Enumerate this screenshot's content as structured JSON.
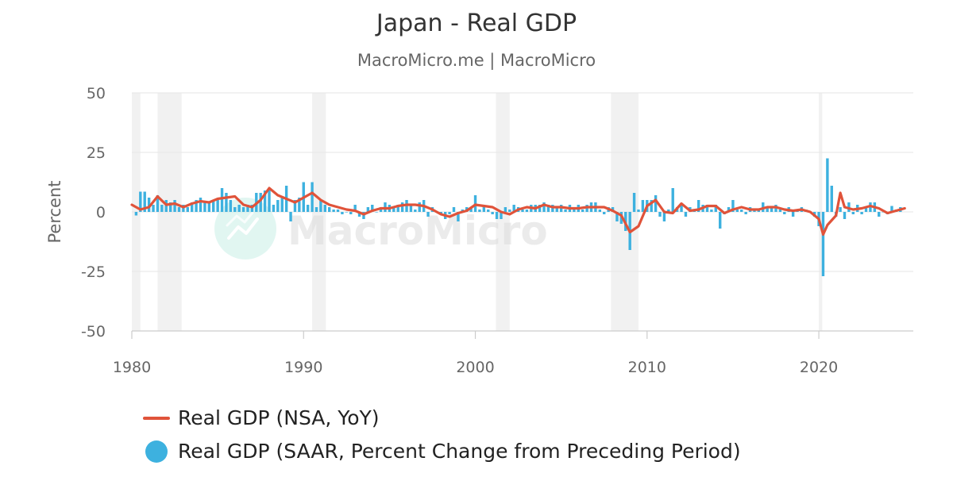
{
  "chart_data": {
    "type": "bar+line",
    "title": "Japan - Real GDP",
    "subtitle": "MacroMicro.me | MacroMicro",
    "watermark": "MacroMicro",
    "ylabel": "Percent",
    "ylim": [
      -50,
      50
    ],
    "yticks": [
      50,
      25,
      0,
      -25,
      -50
    ],
    "xlim": [
      1980,
      2025.5
    ],
    "xticks": [
      1980,
      1990,
      2000,
      2010,
      2020
    ],
    "grid": "horizontal",
    "legend_position": "bottom-left",
    "recession_periods": [
      [
        1980.0,
        1980.5
      ],
      [
        1981.5,
        1982.9
      ],
      [
        1990.5,
        1991.3
      ],
      [
        2001.2,
        2002.0
      ],
      [
        2007.9,
        2009.5
      ],
      [
        2020.0,
        2020.2
      ]
    ],
    "series": [
      {
        "name": "Real GDP (NSA, YoY)",
        "type": "line",
        "color": "#e0533a",
        "points": [
          [
            1980,
            3
          ],
          [
            1980.5,
            1
          ],
          [
            1981,
            2
          ],
          [
            1981.5,
            6.5
          ],
          [
            1982,
            3
          ],
          [
            1982.5,
            3.5
          ],
          [
            1983,
            2
          ],
          [
            1983.5,
            3.5
          ],
          [
            1984,
            4.5
          ],
          [
            1984.5,
            4
          ],
          [
            1985,
            5.5
          ],
          [
            1985.5,
            6
          ],
          [
            1986,
            6.5
          ],
          [
            1986.5,
            3
          ],
          [
            1987,
            2
          ],
          [
            1987.5,
            5
          ],
          [
            1988,
            10
          ],
          [
            1988.5,
            7
          ],
          [
            1989,
            5.5
          ],
          [
            1989.5,
            4
          ],
          [
            1990,
            6
          ],
          [
            1990.5,
            8
          ],
          [
            1991,
            5
          ],
          [
            1991.5,
            3
          ],
          [
            1992,
            2
          ],
          [
            1992.5,
            1
          ],
          [
            1993,
            0.5
          ],
          [
            1993.5,
            -1
          ],
          [
            1994,
            0.5
          ],
          [
            1994.5,
            1.5
          ],
          [
            1995,
            1.5
          ],
          [
            1995.5,
            2.5
          ],
          [
            1996,
            3
          ],
          [
            1996.5,
            3
          ],
          [
            1997,
            2.5
          ],
          [
            1997.5,
            1
          ],
          [
            1998,
            -1
          ],
          [
            1998.5,
            -2
          ],
          [
            1999,
            -0.5
          ],
          [
            1999.5,
            0.5
          ],
          [
            2000,
            3
          ],
          [
            2000.5,
            2.5
          ],
          [
            2001,
            2
          ],
          [
            2001.5,
            0
          ],
          [
            2002,
            -1
          ],
          [
            2002.5,
            1
          ],
          [
            2003,
            2
          ],
          [
            2003.5,
            1.5
          ],
          [
            2004,
            3
          ],
          [
            2004.5,
            2
          ],
          [
            2005,
            2
          ],
          [
            2005.5,
            1.5
          ],
          [
            2006,
            1.5
          ],
          [
            2006.5,
            2
          ],
          [
            2007,
            2
          ],
          [
            2007.5,
            2
          ],
          [
            2008,
            0.5
          ],
          [
            2008.5,
            -1.5
          ],
          [
            2009,
            -8.5
          ],
          [
            2009.5,
            -6
          ],
          [
            2010,
            2.5
          ],
          [
            2010.5,
            5
          ],
          [
            2011,
            0
          ],
          [
            2011.5,
            -0.5
          ],
          [
            2012,
            3.5
          ],
          [
            2012.5,
            0.5
          ],
          [
            2013,
            1
          ],
          [
            2013.5,
            2.5
          ],
          [
            2014,
            2.5
          ],
          [
            2014.5,
            -0.5
          ],
          [
            2015,
            1
          ],
          [
            2015.5,
            2
          ],
          [
            2016,
            1
          ],
          [
            2016.5,
            1
          ],
          [
            2017,
            2
          ],
          [
            2017.5,
            2
          ],
          [
            2018,
            1
          ],
          [
            2018.5,
            0.5
          ],
          [
            2019,
            1
          ],
          [
            2019.5,
            0
          ],
          [
            2020,
            -3
          ],
          [
            2020.25,
            -9.5
          ],
          [
            2020.5,
            -5.5
          ],
          [
            2021,
            -1.5
          ],
          [
            2021.25,
            8
          ],
          [
            2021.5,
            2
          ],
          [
            2022,
            1
          ],
          [
            2022.5,
            1.5
          ],
          [
            2023,
            2.5
          ],
          [
            2023.5,
            1.5
          ],
          [
            2024,
            -0.5
          ],
          [
            2024.5,
            0.5
          ],
          [
            2025,
            1.5
          ]
        ]
      },
      {
        "name": "Real GDP (SAAR, Percent Change from Preceding Period)",
        "type": "bar",
        "color": "#3db1df",
        "points": [
          [
            1980.25,
            -1.5
          ],
          [
            1980.5,
            8.5
          ],
          [
            1980.75,
            8.5
          ],
          [
            1981,
            6
          ],
          [
            1981.25,
            3
          ],
          [
            1981.5,
            7
          ],
          [
            1981.75,
            3
          ],
          [
            1982,
            5
          ],
          [
            1982.25,
            4
          ],
          [
            1982.5,
            5
          ],
          [
            1982.75,
            2
          ],
          [
            1983,
            3
          ],
          [
            1983.25,
            2
          ],
          [
            1983.5,
            4
          ],
          [
            1983.75,
            5
          ],
          [
            1984,
            6
          ],
          [
            1984.25,
            4
          ],
          [
            1984.5,
            4
          ],
          [
            1984.75,
            5
          ],
          [
            1985,
            5
          ],
          [
            1985.25,
            10
          ],
          [
            1985.5,
            8
          ],
          [
            1985.75,
            5
          ],
          [
            1986,
            2
          ],
          [
            1986.25,
            3
          ],
          [
            1986.5,
            2
          ],
          [
            1986.75,
            3
          ],
          [
            1987,
            3
          ],
          [
            1987.25,
            8
          ],
          [
            1987.5,
            8
          ],
          [
            1987.75,
            9
          ],
          [
            1988,
            10
          ],
          [
            1988.25,
            3
          ],
          [
            1988.5,
            5
          ],
          [
            1988.75,
            6
          ],
          [
            1989,
            11
          ],
          [
            1989.25,
            -4
          ],
          [
            1989.5,
            5
          ],
          [
            1989.75,
            6
          ],
          [
            1990,
            12.5
          ],
          [
            1990.25,
            3
          ],
          [
            1990.5,
            12.5
          ],
          [
            1990.75,
            2
          ],
          [
            1991,
            5
          ],
          [
            1991.25,
            3
          ],
          [
            1991.5,
            2
          ],
          [
            1991.75,
            1
          ],
          [
            1992,
            1
          ],
          [
            1992.25,
            -1
          ],
          [
            1992.5,
            0
          ],
          [
            1992.75,
            -1
          ],
          [
            1993,
            3
          ],
          [
            1993.25,
            -2
          ],
          [
            1993.5,
            -3
          ],
          [
            1993.75,
            2
          ],
          [
            1994,
            3
          ],
          [
            1994.25,
            0
          ],
          [
            1994.5,
            2
          ],
          [
            1994.75,
            4
          ],
          [
            1995,
            3
          ],
          [
            1995.25,
            2
          ],
          [
            1995.5,
            3
          ],
          [
            1995.75,
            4
          ],
          [
            1996,
            5
          ],
          [
            1996.25,
            3
          ],
          [
            1996.5,
            1
          ],
          [
            1996.75,
            4
          ],
          [
            1997,
            5
          ],
          [
            1997.25,
            -2
          ],
          [
            1997.5,
            2
          ],
          [
            1997.75,
            0
          ],
          [
            1998,
            -1
          ],
          [
            1998.25,
            -3
          ],
          [
            1998.5,
            -1
          ],
          [
            1998.75,
            2
          ],
          [
            1999,
            -4
          ],
          [
            1999.25,
            1
          ],
          [
            1999.5,
            2
          ],
          [
            1999.75,
            2
          ],
          [
            2000,
            7
          ],
          [
            2000.25,
            1
          ],
          [
            2000.5,
            2
          ],
          [
            2000.75,
            1
          ],
          [
            2001,
            -1
          ],
          [
            2001.25,
            -3
          ],
          [
            2001.5,
            -3
          ],
          [
            2001.75,
            2
          ],
          [
            2002,
            1
          ],
          [
            2002.25,
            3
          ],
          [
            2002.5,
            2
          ],
          [
            2002.75,
            1
          ],
          [
            2003,
            1
          ],
          [
            2003.25,
            3
          ],
          [
            2003.5,
            3
          ],
          [
            2003.75,
            3
          ],
          [
            2004,
            4
          ],
          [
            2004.25,
            3
          ],
          [
            2004.5,
            3
          ],
          [
            2004.75,
            2
          ],
          [
            2005,
            3
          ],
          [
            2005.25,
            1
          ],
          [
            2005.5,
            3
          ],
          [
            2005.75,
            2
          ],
          [
            2006,
            3
          ],
          [
            2006.25,
            1
          ],
          [
            2006.5,
            3
          ],
          [
            2006.75,
            4
          ],
          [
            2007,
            4
          ],
          [
            2007.25,
            1
          ],
          [
            2007.5,
            -1
          ],
          [
            2007.75,
            2
          ],
          [
            2008,
            2
          ],
          [
            2008.25,
            -4
          ],
          [
            2008.5,
            -5
          ],
          [
            2008.75,
            -8
          ],
          [
            2009,
            -16
          ],
          [
            2009.25,
            8
          ],
          [
            2009.5,
            1
          ],
          [
            2009.75,
            5
          ],
          [
            2010,
            5
          ],
          [
            2010.25,
            5
          ],
          [
            2010.5,
            7
          ],
          [
            2010.75,
            -2
          ],
          [
            2011,
            -4
          ],
          [
            2011.25,
            1
          ],
          [
            2011.5,
            10
          ],
          [
            2011.75,
            2
          ],
          [
            2012,
            3
          ],
          [
            2012.25,
            -2
          ],
          [
            2012.5,
            2
          ],
          [
            2012.75,
            1
          ],
          [
            2013,
            5
          ],
          [
            2013.25,
            3
          ],
          [
            2013.5,
            3
          ],
          [
            2013.75,
            1
          ],
          [
            2014,
            3
          ],
          [
            2014.25,
            -7
          ],
          [
            2014.5,
            -1
          ],
          [
            2014.75,
            2
          ],
          [
            2015,
            5
          ],
          [
            2015.25,
            1
          ],
          [
            2015.5,
            1
          ],
          [
            2015.75,
            -1
          ],
          [
            2016,
            2
          ],
          [
            2016.25,
            1
          ],
          [
            2016.5,
            1
          ],
          [
            2016.75,
            4
          ],
          [
            2017,
            2
          ],
          [
            2017.25,
            2
          ],
          [
            2017.5,
            3
          ],
          [
            2017.75,
            1
          ],
          [
            2018,
            -1
          ],
          [
            2018.25,
            2
          ],
          [
            2018.5,
            -2
          ],
          [
            2018.75,
            1
          ],
          [
            2019,
            2
          ],
          [
            2019.25,
            1
          ],
          [
            2019.5,
            0
          ],
          [
            2019.75,
            -2
          ],
          [
            2020,
            -6
          ],
          [
            2020.25,
            -27
          ],
          [
            2020.5,
            22.5
          ],
          [
            2020.75,
            11
          ],
          [
            2021,
            -2
          ],
          [
            2021.25,
            2
          ],
          [
            2021.5,
            -3
          ],
          [
            2021.75,
            4
          ],
          [
            2022,
            -1
          ],
          [
            2022.25,
            3
          ],
          [
            2022.5,
            -1
          ],
          [
            2022.75,
            2
          ],
          [
            2023,
            4
          ],
          [
            2023.25,
            4
          ],
          [
            2023.5,
            -2
          ],
          [
            2023.75,
            0
          ],
          [
            2024,
            -1
          ],
          [
            2024.25,
            2.5
          ],
          [
            2024.5,
            1
          ],
          [
            2024.75,
            2
          ]
        ]
      }
    ]
  }
}
